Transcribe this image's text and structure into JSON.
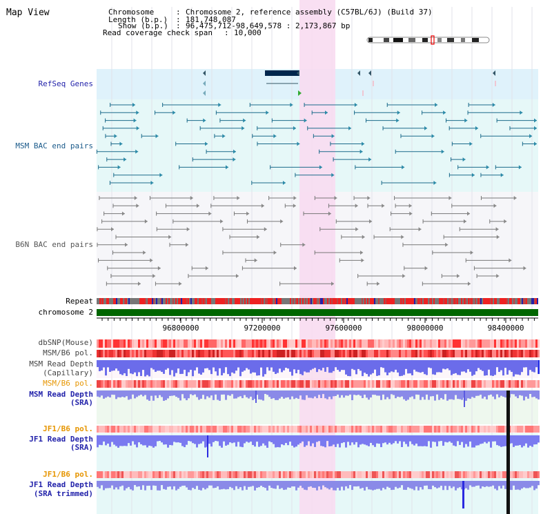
{
  "title": "Map View",
  "header": {
    "chromosome_label": "Chromosome",
    "chromosome_value": "Chromosome 2, reference assembly (C57BL/6J) (Build 37)",
    "length_label": "Length (b.p.)",
    "length_value": "181,748,087",
    "show_label": "Show (b.p.)",
    "show_value": "96,475,712-98,649,578 : 2,173,867 bp",
    "span_label": "Read coverage check span",
    "span_value": "10,000"
  },
  "tracks": {
    "refseq": "RefSeq Genes",
    "msm_bac": "MSM BAC end pairs",
    "b6n_bac": "B6N BAC end pairs",
    "repeat": "Repeat",
    "chromosome": "chromosome 2",
    "dbsnp": "dbSNP(Mouse)",
    "msm_b6_pol_1": "MSM/B6 pol.",
    "msm_read_depth_cap_1": "MSM Read Depth",
    "msm_read_depth_cap_2": "(Capillary)",
    "msm_b6_pol_2": "MSM/B6 pol.",
    "msm_read_depth_sra_1": "MSM Read Depth",
    "msm_read_depth_sra_2": "(SRA)",
    "jf1_b6_pol_1": "JF1/B6 pol.",
    "jf1_read_depth_sra_1": "JF1 Read Depth",
    "jf1_read_depth_sra_2": "(SRA)",
    "jf1_b6_pol_2": "JF1/B6 pol.",
    "jf1_read_depth_trim_1": "JF1 Read Depth",
    "jf1_read_depth_trim_2": "(SRA trimmed)"
  },
  "axis_ticks": [
    "96800000",
    "97200000",
    "97600000",
    "98000000",
    "98400000"
  ],
  "colors": {
    "refseq_bg": "#dff2fb",
    "bac_bg": "#e6f8f8",
    "highlight": "#f8dcf1",
    "msm_blue": "#1f2be6",
    "label_blue": "#2222aa",
    "label_orange": "#e69500",
    "label_navy": "#1a5a8a",
    "chromosome_bar": "#006600",
    "gene_dark": "#00264d"
  }
}
